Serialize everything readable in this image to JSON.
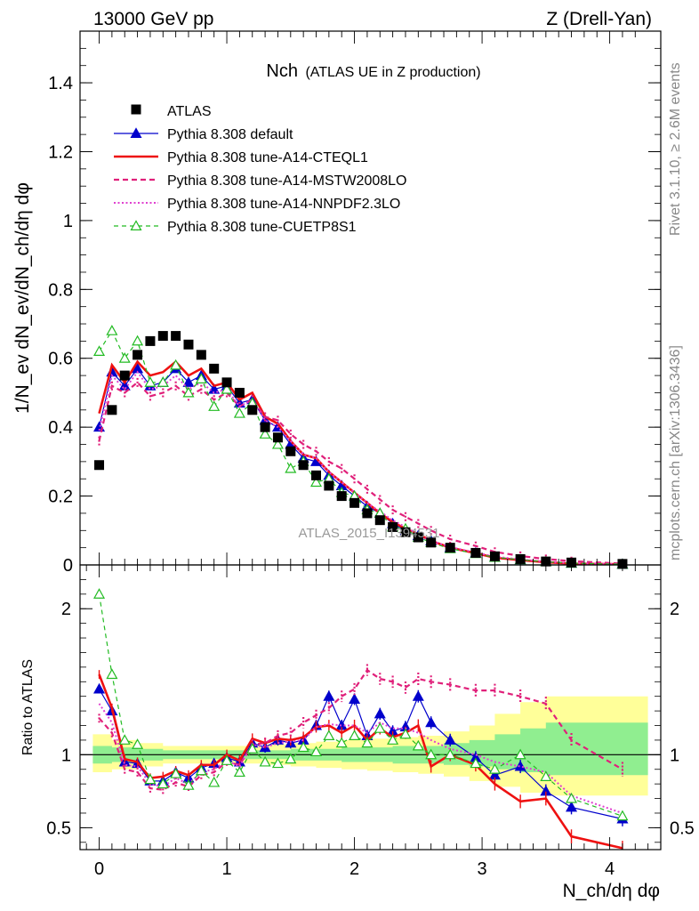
{
  "header": {
    "left": "13000 GeV pp",
    "right": "Z (Drell-Yan)"
  },
  "side_labels": {
    "rivet": "Rivet 3.1.10, ≥ 2.6M events",
    "mcplots": "mcplots.cern.ch [arXiv:1306.3436]"
  },
  "watermark": "ATLAS_2015_I1394531",
  "colors": {
    "atlas": "#000000",
    "default": "#0000cc",
    "cteql1": "#ee1111",
    "mstw": "#e0207a",
    "nnpdf": "#e040d0",
    "cuetp8s1": "#22bb22",
    "band_inner": "#90ee90",
    "band_outer": "#ffff99"
  },
  "chart_data": [
    {
      "type": "scatter",
      "panel": "main",
      "title": "Nch",
      "subtitle": "(ATLAS UE in Z production)",
      "ylabel": "1/N_ev dN_ev/dN_ch/dη dφ",
      "xlim": [
        -0.15,
        4.4
      ],
      "ylim": [
        0,
        1.55
      ],
      "yticks": [
        "0",
        "0.2",
        "0.4",
        "0.6",
        "0.8",
        "1",
        "1.2",
        "1.4"
      ],
      "legend_position": "top-left",
      "x": [
        0.0,
        0.1,
        0.2,
        0.3,
        0.4,
        0.5,
        0.6,
        0.7,
        0.8,
        0.9,
        1.0,
        1.1,
        1.2,
        1.3,
        1.4,
        1.5,
        1.6,
        1.7,
        1.8,
        1.9,
        2.0,
        2.1,
        2.2,
        2.3,
        2.4,
        2.5,
        2.6,
        2.75,
        2.95,
        3.1,
        3.3,
        3.5,
        3.7,
        4.1
      ],
      "series": [
        {
          "name": "ATLAS",
          "style": "square",
          "values": [
            0.29,
            0.45,
            0.55,
            0.61,
            0.65,
            0.665,
            0.665,
            0.64,
            0.61,
            0.57,
            0.53,
            0.5,
            0.45,
            0.4,
            0.37,
            0.33,
            0.29,
            0.26,
            0.23,
            0.2,
            0.18,
            0.15,
            0.13,
            0.11,
            0.095,
            0.08,
            0.065,
            0.05,
            0.035,
            0.025,
            0.017,
            0.01,
            0.007,
            0.003
          ]
        },
        {
          "name": "Pythia 8.308 default",
          "style": "default",
          "values": [
            0.4,
            0.56,
            0.52,
            0.57,
            0.52,
            0.53,
            0.57,
            0.53,
            0.55,
            0.51,
            0.52,
            0.47,
            0.48,
            0.42,
            0.4,
            0.35,
            0.31,
            0.3,
            0.26,
            0.23,
            0.2,
            0.17,
            0.15,
            0.12,
            0.1,
            0.085,
            0.07,
            0.05,
            0.035,
            0.022,
            0.015,
            0.009,
            0.005,
            0.002
          ]
        },
        {
          "name": "Pythia 8.308 tune-A14-CTEQL1",
          "style": "cteql1",
          "values": [
            0.44,
            0.58,
            0.53,
            0.59,
            0.55,
            0.56,
            0.59,
            0.55,
            0.57,
            0.52,
            0.53,
            0.48,
            0.5,
            0.43,
            0.41,
            0.36,
            0.32,
            0.31,
            0.27,
            0.24,
            0.21,
            0.18,
            0.15,
            0.125,
            0.105,
            0.09,
            0.07,
            0.05,
            0.034,
            0.021,
            0.014,
            0.008,
            0.004,
            0.002
          ]
        },
        {
          "name": "Pythia 8.308 tune-A14-MSTW2008LO",
          "style": "mstw",
          "values": [
            0.36,
            0.52,
            0.5,
            0.53,
            0.49,
            0.5,
            0.52,
            0.49,
            0.51,
            0.48,
            0.5,
            0.46,
            0.48,
            0.43,
            0.42,
            0.38,
            0.35,
            0.33,
            0.3,
            0.28,
            0.25,
            0.22,
            0.19,
            0.16,
            0.14,
            0.12,
            0.1,
            0.075,
            0.055,
            0.038,
            0.026,
            0.017,
            0.011,
            0.004
          ]
        },
        {
          "name": "Pythia 8.308 tune-A14-NNPDF2.3LO",
          "style": "nnpdf",
          "values": [
            0.39,
            0.55,
            0.51,
            0.56,
            0.51,
            0.52,
            0.55,
            0.51,
            0.53,
            0.5,
            0.51,
            0.46,
            0.48,
            0.42,
            0.4,
            0.36,
            0.32,
            0.31,
            0.27,
            0.24,
            0.21,
            0.18,
            0.155,
            0.13,
            0.11,
            0.09,
            0.07,
            0.052,
            0.036,
            0.024,
            0.016,
            0.009,
            0.005,
            0.002
          ]
        },
        {
          "name": "Pythia 8.308 tune-CUETP8S1",
          "style": "cuetp8s1",
          "values": [
            0.62,
            0.68,
            0.6,
            0.65,
            0.53,
            0.53,
            0.58,
            0.5,
            0.54,
            0.46,
            0.51,
            0.44,
            0.47,
            0.38,
            0.35,
            0.28,
            0.3,
            0.24,
            0.25,
            0.21,
            0.2,
            0.16,
            0.15,
            0.11,
            0.105,
            0.08,
            0.065,
            0.047,
            0.033,
            0.022,
            0.015,
            0.009,
            0.005,
            0.002
          ]
        }
      ]
    },
    {
      "type": "line",
      "panel": "ratio",
      "xlabel": "N_ch/dη dφ",
      "ylabel": "Ratio to ATLAS",
      "xlim": [
        -0.15,
        4.4
      ],
      "ylim": [
        0.35,
        2.3
      ],
      "xticks": [
        "0",
        "1",
        "2",
        "3",
        "4"
      ],
      "yticks": [
        "0.5",
        "1",
        "2"
      ],
      "x": [
        0.0,
        0.1,
        0.2,
        0.3,
        0.4,
        0.5,
        0.6,
        0.7,
        0.8,
        0.9,
        1.0,
        1.1,
        1.2,
        1.3,
        1.4,
        1.5,
        1.6,
        1.7,
        1.8,
        1.9,
        2.0,
        2.1,
        2.2,
        2.3,
        2.4,
        2.5,
        2.6,
        2.75,
        2.95,
        3.1,
        3.3,
        3.5,
        3.7,
        4.1
      ],
      "series": [
        {
          "name": "Pythia 8.308 default",
          "style": "default",
          "values": [
            1.45,
            1.3,
            0.95,
            0.94,
            0.82,
            0.82,
            0.88,
            0.84,
            0.91,
            0.94,
            0.98,
            0.95,
            1.08,
            1.05,
            1.1,
            1.08,
            1.1,
            1.2,
            1.4,
            1.2,
            1.38,
            1.13,
            1.28,
            1.16,
            1.19,
            1.4,
            1.22,
            1.1,
            0.98,
            0.86,
            0.92,
            0.75,
            0.64,
            0.56
          ]
        },
        {
          "name": "Pythia 8.308 tune-A14-CTEQL1",
          "style": "cteql1",
          "values": [
            1.55,
            1.32,
            0.97,
            0.95,
            0.84,
            0.85,
            0.89,
            0.86,
            0.93,
            0.93,
            1.0,
            0.96,
            1.11,
            1.08,
            1.11,
            1.1,
            1.12,
            1.19,
            1.2,
            1.15,
            1.2,
            1.1,
            1.18,
            1.12,
            1.15,
            1.2,
            0.92,
            1.0,
            0.93,
            0.8,
            0.68,
            0.7,
            0.44,
            0.36
          ]
        },
        {
          "name": "Pythia 8.308 tune-A14-MSTW2008LO",
          "style": "mstw",
          "values": [
            1.25,
            1.15,
            0.9,
            0.88,
            0.77,
            0.76,
            0.81,
            0.78,
            0.86,
            0.88,
            0.95,
            0.93,
            1.07,
            1.08,
            1.13,
            1.15,
            1.22,
            1.27,
            1.32,
            1.4,
            1.45,
            1.58,
            1.52,
            1.5,
            1.46,
            1.52,
            1.5,
            1.48,
            1.44,
            1.44,
            1.4,
            1.35,
            1.1,
            0.9
          ]
        },
        {
          "name": "Pythia 8.308 tune-A14-NNPDF2.3LO",
          "style": "nnpdf",
          "values": [
            1.35,
            1.22,
            0.93,
            0.92,
            0.8,
            0.78,
            0.84,
            0.8,
            0.88,
            0.9,
            0.96,
            0.92,
            1.07,
            1.05,
            1.08,
            1.09,
            1.1,
            1.19,
            1.21,
            1.2,
            1.2,
            1.15,
            1.22,
            1.18,
            1.18,
            1.15,
            1.1,
            1.04,
            1.0,
            0.95,
            0.92,
            0.88,
            0.72,
            0.6
          ]
        },
        {
          "name": "Pythia 8.308 tune-CUETP8S1",
          "style": "cuetp8s1",
          "values": [
            2.1,
            1.55,
            1.1,
            1.07,
            0.83,
            0.8,
            0.87,
            0.79,
            0.89,
            0.81,
            0.96,
            0.88,
            1.04,
            0.95,
            0.94,
            0.97,
            1.05,
            1.02,
            1.13,
            1.08,
            1.13,
            1.08,
            1.18,
            1.1,
            1.14,
            1.06,
            1.0,
            1.0,
            0.94,
            0.9,
            1.0,
            0.85,
            0.7,
            0.58
          ]
        }
      ],
      "band": {
        "x": [
          -0.05,
          0.1,
          0.3,
          0.5,
          0.7,
          0.9,
          1.1,
          1.3,
          1.5,
          1.7,
          1.9,
          2.1,
          2.3,
          2.5,
          2.7,
          2.9,
          3.1,
          3.3,
          3.5,
          3.7,
          3.9,
          4.3
        ],
        "inner_low": [
          0.94,
          0.95,
          0.96,
          0.97,
          0.97,
          0.97,
          0.97,
          0.97,
          0.96,
          0.96,
          0.95,
          0.95,
          0.94,
          0.94,
          0.93,
          0.92,
          0.9,
          0.88,
          0.86,
          0.86,
          0.86,
          0.86
        ],
        "inner_high": [
          1.06,
          1.05,
          1.04,
          1.03,
          1.03,
          1.03,
          1.03,
          1.03,
          1.04,
          1.04,
          1.05,
          1.05,
          1.06,
          1.06,
          1.08,
          1.1,
          1.14,
          1.18,
          1.22,
          1.22,
          1.22,
          1.22
        ],
        "outer_low": [
          0.88,
          0.9,
          0.92,
          0.94,
          0.94,
          0.94,
          0.94,
          0.93,
          0.92,
          0.91,
          0.9,
          0.89,
          0.88,
          0.87,
          0.85,
          0.82,
          0.78,
          0.74,
          0.72,
          0.72,
          0.72,
          0.72
        ],
        "outer_high": [
          1.14,
          1.1,
          1.08,
          1.06,
          1.06,
          1.06,
          1.06,
          1.07,
          1.08,
          1.09,
          1.1,
          1.11,
          1.12,
          1.13,
          1.16,
          1.2,
          1.28,
          1.36,
          1.4,
          1.4,
          1.4,
          1.4
        ]
      }
    }
  ]
}
